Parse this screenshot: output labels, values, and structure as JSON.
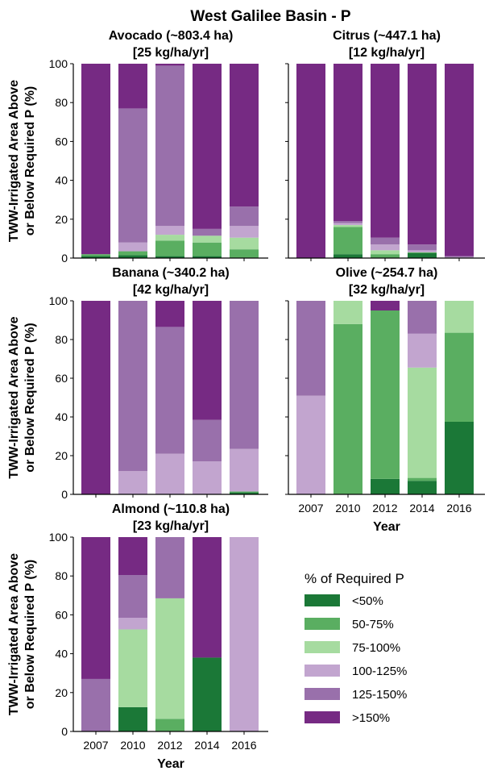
{
  "figure": {
    "title": "West Galilee Basin - P"
  },
  "ylabel_lines": [
    "TWW-Irrigated Area Above",
    "or Below Required P (%)"
  ],
  "xlabel": "Year",
  "legend": {
    "title": "% of Required P",
    "entries": [
      "<50%",
      "50-75%",
      "75-100%",
      "100-125%",
      "125-150%",
      ">150%"
    ],
    "colors": [
      "#1b7837",
      "#5aae61",
      "#a6dba0",
      "#c2a5cf",
      "#9970ab",
      "#762a83"
    ]
  },
  "chart_data": [
    {
      "type": "bar",
      "stacked": true,
      "title": [
        "Avocado (~803.4 ha)",
        "[25 kg/ha/yr]"
      ],
      "categories": [
        "2007",
        "2010",
        "2012",
        "2014",
        "2016"
      ],
      "ylim": [
        0,
        100
      ],
      "yticks": [
        0,
        20,
        40,
        60,
        80,
        100
      ],
      "series": [
        {
          "name": "<50%",
          "values": [
            1,
            1.5,
            1,
            1,
            0
          ]
        },
        {
          "name": "50-75%",
          "values": [
            1,
            2,
            8,
            7,
            4.5
          ]
        },
        {
          "name": "75-100%",
          "values": [
            0,
            0,
            3,
            3.5,
            6
          ]
        },
        {
          "name": "100-125%",
          "values": [
            0,
            4.5,
            4.5,
            0,
            6
          ]
        },
        {
          "name": "125-150%",
          "values": [
            0,
            69,
            82.5,
            3.5,
            10
          ]
        },
        {
          "name": ">150%",
          "values": [
            98,
            23,
            1,
            85,
            73.5
          ]
        }
      ]
    },
    {
      "type": "bar",
      "stacked": true,
      "title": [
        "Citrus (~447.1 ha)",
        "[12 kg/ha/yr]"
      ],
      "categories": [
        "2007",
        "2010",
        "2012",
        "2014",
        "2016"
      ],
      "ylim": [
        0,
        100
      ],
      "yticks": [
        0,
        20,
        40,
        60,
        80,
        100
      ],
      "series": [
        {
          "name": "<50%",
          "values": [
            0,
            2,
            0,
            2.5,
            0
          ]
        },
        {
          "name": "50-75%",
          "values": [
            0,
            14,
            2,
            0.5,
            0
          ]
        },
        {
          "name": "75-100%",
          "values": [
            0,
            1,
            2,
            0,
            0
          ]
        },
        {
          "name": "100-125%",
          "values": [
            0,
            1,
            3,
            1,
            0.5
          ]
        },
        {
          "name": "125-150%",
          "values": [
            0,
            1,
            3.5,
            3,
            0.5
          ]
        },
        {
          "name": ">150%",
          "values": [
            100,
            81,
            89.5,
            93,
            99
          ]
        }
      ]
    },
    {
      "type": "bar",
      "stacked": true,
      "title": [
        "Banana (~340.2 ha)",
        "[42 kg/ha/yr]"
      ],
      "categories": [
        "2007",
        "2010",
        "2012",
        "2014",
        "2016"
      ],
      "ylim": [
        0,
        100
      ],
      "yticks": [
        0,
        20,
        40,
        60,
        80,
        100
      ],
      "series": [
        {
          "name": "<50%",
          "values": [
            0,
            0,
            0,
            0,
            1
          ]
        },
        {
          "name": "50-75%",
          "values": [
            0,
            0,
            0,
            0,
            0.5
          ]
        },
        {
          "name": "75-100%",
          "values": [
            0,
            0,
            0,
            0,
            0
          ]
        },
        {
          "name": "100-125%",
          "values": [
            0,
            12,
            21,
            17,
            22
          ]
        },
        {
          "name": "125-150%",
          "values": [
            0,
            88,
            65.5,
            21.5,
            76.5
          ]
        },
        {
          "name": ">150%",
          "values": [
            100,
            0,
            13.5,
            61.5,
            0
          ]
        }
      ]
    },
    {
      "type": "bar",
      "stacked": true,
      "title": [
        "Olive (~254.7 ha)",
        "[32 kg/ha/yr]"
      ],
      "categories": [
        "2007",
        "2010",
        "2012",
        "2014",
        "2016"
      ],
      "xlabel": "Year",
      "ylim": [
        0,
        100
      ],
      "yticks": [
        0,
        20,
        40,
        60,
        80,
        100
      ],
      "series": [
        {
          "name": "<50%",
          "values": [
            0,
            0,
            8,
            7,
            37.5
          ]
        },
        {
          "name": "50-75%",
          "values": [
            0,
            88,
            87,
            1.5,
            46
          ]
        },
        {
          "name": "75-100%",
          "values": [
            0,
            12,
            0,
            57,
            16.5
          ]
        },
        {
          "name": "100-125%",
          "values": [
            51,
            0,
            0,
            17.5,
            0
          ]
        },
        {
          "name": "125-150%",
          "values": [
            49,
            0,
            0,
            17,
            0
          ]
        },
        {
          "name": ">150%",
          "values": [
            0,
            0,
            5,
            0,
            0
          ]
        }
      ]
    },
    {
      "type": "bar",
      "stacked": true,
      "title": [
        "Almond (~110.8 ha)",
        "[23 kg/ha/yr]"
      ],
      "categories": [
        "2007",
        "2010",
        "2012",
        "2014",
        "2016"
      ],
      "xlabel": "Year",
      "ylim": [
        0,
        100
      ],
      "yticks": [
        0,
        20,
        40,
        60,
        80,
        100
      ],
      "series": [
        {
          "name": "<50%",
          "values": [
            0,
            12.5,
            0,
            38,
            0
          ]
        },
        {
          "name": "50-75%",
          "values": [
            0,
            0,
            6.5,
            0,
            0
          ]
        },
        {
          "name": "75-100%",
          "values": [
            0,
            40,
            62,
            0,
            0
          ]
        },
        {
          "name": "100-125%",
          "values": [
            0,
            6,
            0,
            0,
            100
          ]
        },
        {
          "name": "125-150%",
          "values": [
            27,
            22,
            31.5,
            0,
            0
          ]
        },
        {
          "name": ">150%",
          "values": [
            73,
            19.5,
            0,
            62,
            0
          ]
        }
      ]
    }
  ]
}
